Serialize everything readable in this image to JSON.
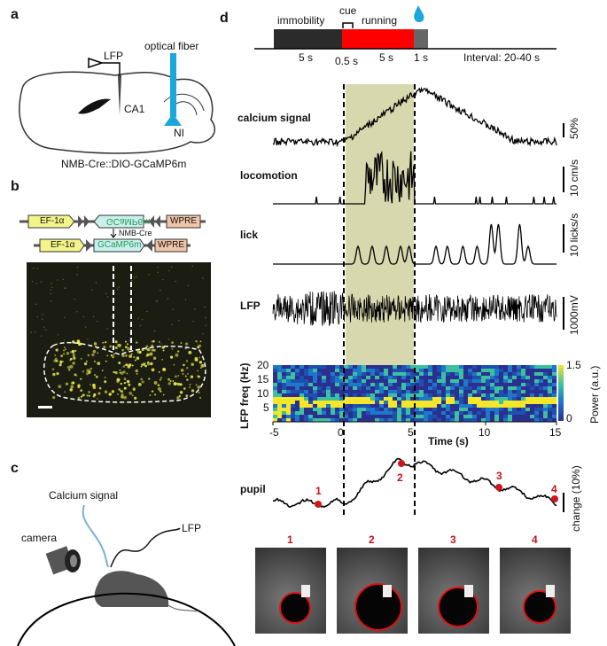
{
  "panels": {
    "a": "a",
    "b": "b",
    "c": "c",
    "d": "d"
  },
  "panel_a": {
    "lfp": "LFP",
    "optical_fiber": "optical fiber",
    "ca1": "CA1",
    "ni": "NI",
    "genotype": "NMB-Cre::DIO-GCaMP6m",
    "fiber_color": "#1aa7dd"
  },
  "panel_b": {
    "promoter": "EF-1α",
    "gene_inverted": "GCaMP6m",
    "gene": "GCaMP6m",
    "wpre": "WPRE",
    "recombinase": "NMB-Cre"
  },
  "panel_c": {
    "calcium_signal": "Calcium signal",
    "camera": "camera",
    "lfp": "LFP"
  },
  "panel_d": {
    "timeline": {
      "immobility": "immobility",
      "cue": "cue",
      "running": "running",
      "d1": "5 s",
      "d2": "0.5 s",
      "d3": "5 s",
      "d4": "1 s",
      "interval": "Interval: 20-40 s",
      "colors": {
        "immobility": "#2b2b2b",
        "running": "#ff0000",
        "reward": "#666666",
        "water_drop": "#1aa7dd"
      }
    },
    "traces": {
      "calcium": "calcium signal",
      "locomotion": "locomotion",
      "lick": "lick",
      "lfp": "LFP",
      "pupil": "pupil"
    },
    "scalebars": {
      "calcium": "50%",
      "locomotion": "10 cm/s",
      "lick": "10 licks/s",
      "lfp": "1000mV",
      "pupil": "change (10%)"
    },
    "spectrogram": {
      "ylabel": "LFP freq (Hz)",
      "yticks": [
        "20",
        "15",
        "10",
        "5"
      ],
      "xlabel": "Time (s)",
      "xticks": [
        "-5",
        "0",
        "5",
        "10",
        "15"
      ],
      "colorbar_label": "Power (a.u.)",
      "colorbar_max": "1.5",
      "colorbar_min": "0"
    },
    "pupil_markers": [
      "1",
      "2",
      "3",
      "4"
    ],
    "eye_images": [
      {
        "label": "1",
        "pupil_size": "small"
      },
      {
        "label": "2",
        "pupil_size": "large"
      },
      {
        "label": "3",
        "pupil_size": "medium"
      },
      {
        "label": "4",
        "pupil_size": "small"
      }
    ],
    "shade_color": "#d8d8ae"
  }
}
